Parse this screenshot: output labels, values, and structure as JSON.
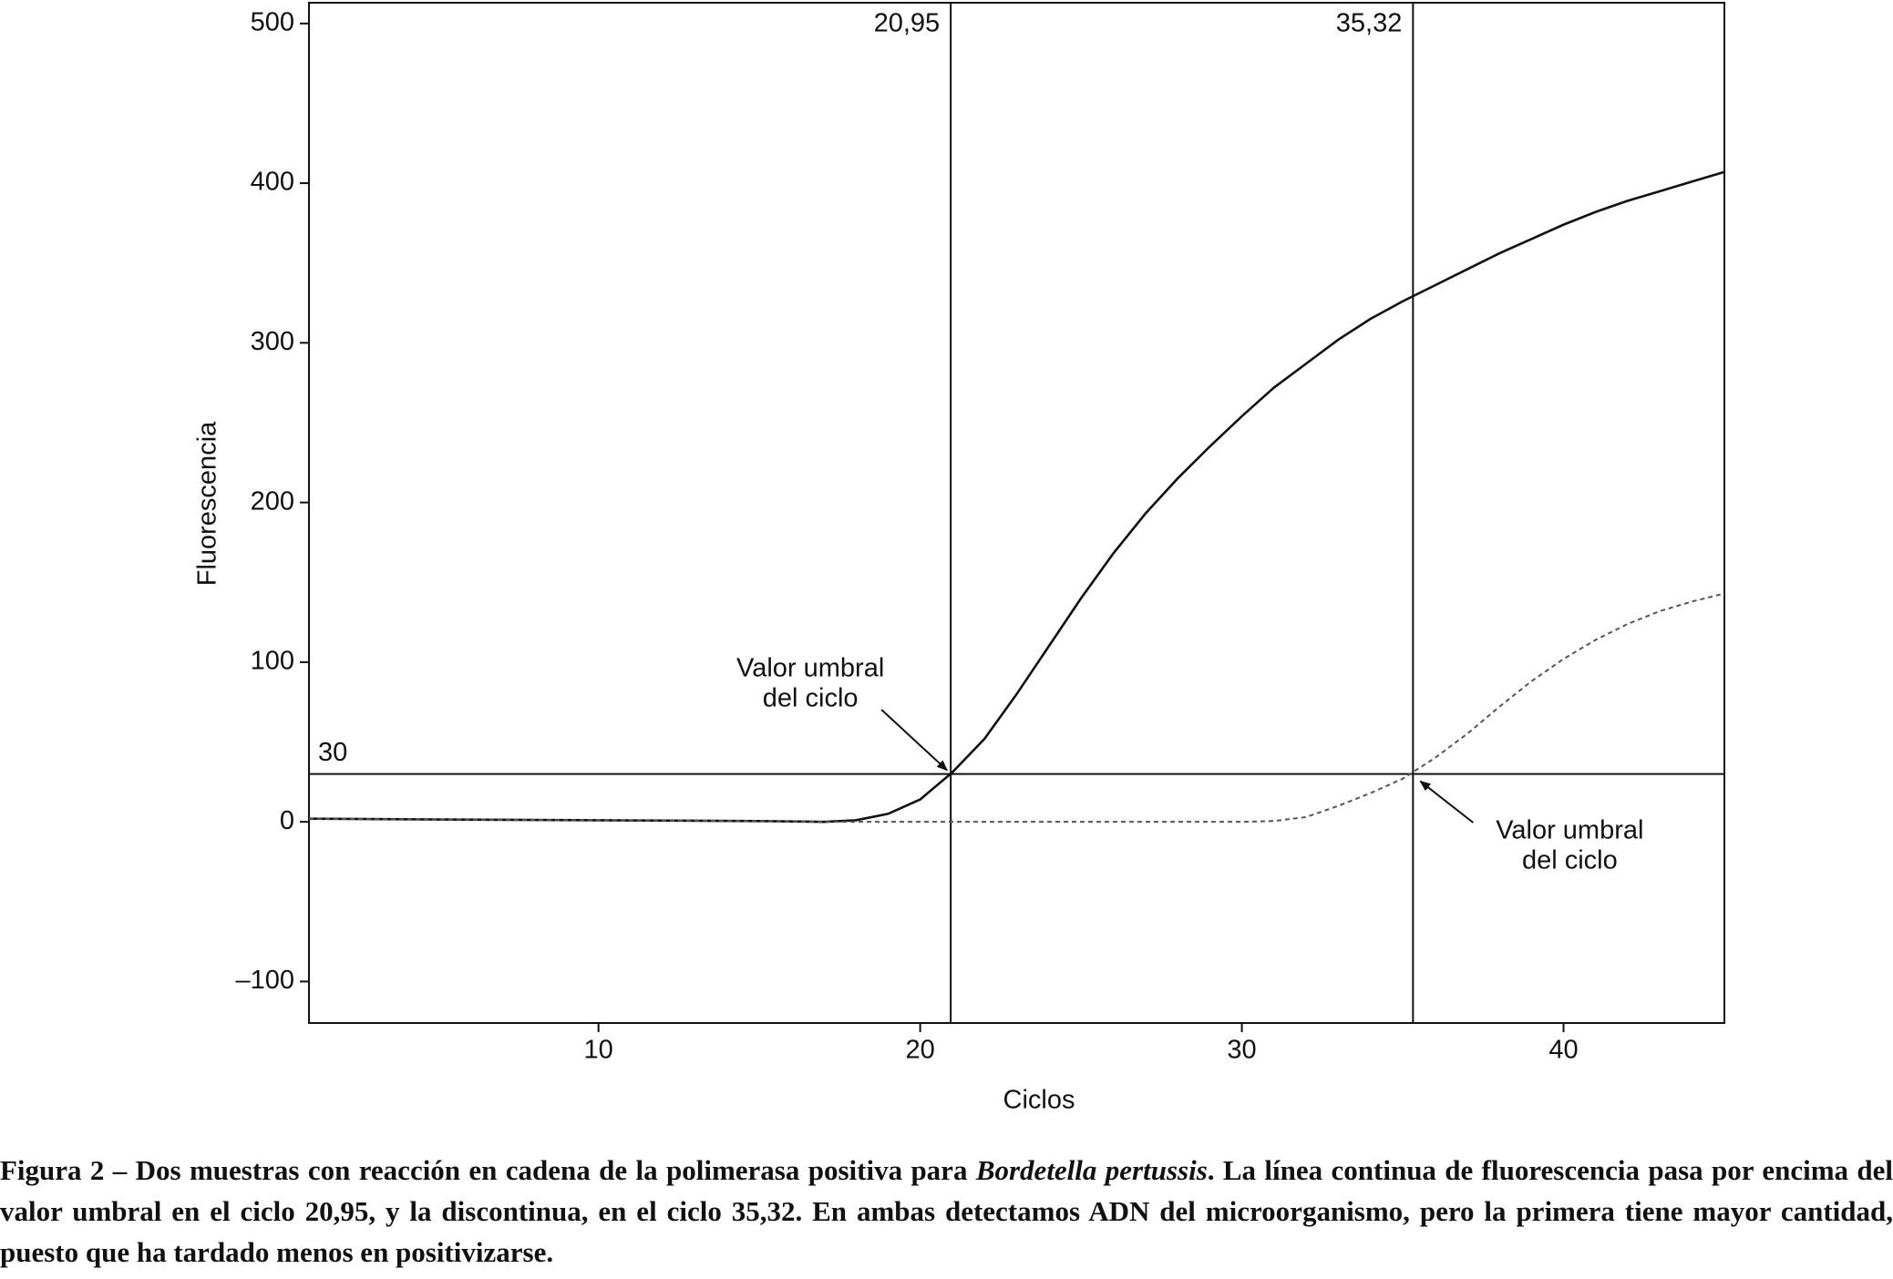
{
  "chart_data": {
    "type": "line",
    "xlabel": "Ciclos",
    "ylabel": "Fluorescencia",
    "x": [
      1,
      5,
      10,
      15,
      17,
      18,
      19,
      20,
      21,
      22,
      23,
      24,
      25,
      26,
      27,
      28,
      29,
      30,
      31,
      32,
      33,
      34,
      35,
      36,
      37,
      38,
      39,
      40,
      41,
      42,
      43,
      44,
      45
    ],
    "series": [
      {
        "color": "#111111",
        "style": "solid",
        "values": [
          2,
          1.5,
          1,
          0.5,
          0,
          1,
          5,
          14,
          31,
          52,
          80,
          110,
          140,
          168,
          193,
          215,
          235,
          254,
          272,
          287,
          302,
          315,
          326,
          336,
          346,
          356,
          365,
          374,
          382,
          389,
          395,
          401,
          407
        ]
      },
      {
        "color": "#555555",
        "style": "dashed",
        "values": [
          2,
          1.5,
          1,
          0.5,
          0,
          0,
          0,
          0,
          0,
          0,
          0,
          0,
          0,
          0,
          0,
          0,
          0,
          0,
          0.5,
          3,
          10,
          18,
          27,
          40,
          55,
          72,
          88,
          102,
          114,
          124,
          132,
          138,
          143
        ]
      }
    ],
    "xlim": [
      1,
      45
    ],
    "ylim": [
      -126,
      513
    ],
    "xticks": [
      10,
      20,
      30,
      40
    ],
    "yticks": [
      {
        "value": -100,
        "label": "–100"
      },
      0,
      100,
      200,
      300,
      400,
      500
    ],
    "threshold": {
      "value": 30,
      "label": "30"
    },
    "vlines": [
      {
        "value": 20.95,
        "label": "20,95"
      },
      {
        "value": 35.32,
        "label": "35,32"
      }
    ],
    "annotations": [
      {
        "lines": [
          "Valor umbral",
          "del ciclo"
        ]
      },
      {
        "lines": [
          "Valor umbral",
          "del ciclo"
        ]
      }
    ]
  },
  "caption": {
    "parts": [
      "Figura 2 – Dos muestras con reacción en cadena de la polimerasa positiva para ",
      "Bordetella pertussis",
      ". La línea continua de fluorescencia pasa por encima del valor umbral en el ciclo 20,95, y la discontinua, en el ciclo 35,32. En ambas detectamos ADN del microorganismo, pero la primera tiene mayor cantidad, puesto que ha tardado menos en positivizarse."
    ]
  }
}
